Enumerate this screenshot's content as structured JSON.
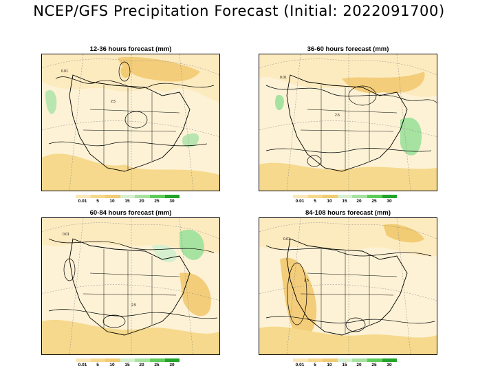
{
  "title": "NCEP/GFS Precipitation Forecast (Initial: 2022091700)",
  "panels": [
    {
      "title": "12-36 hours forecast (mm)"
    },
    {
      "title": "36-60 hours forecast (mm)"
    },
    {
      "title": "60-84 hours forecast (mm)"
    },
    {
      "title": "84-108 hours forecast (mm)"
    }
  ],
  "colorbar": {
    "labels": [
      "0.01",
      "5",
      "10",
      "15",
      "20",
      "25",
      "30"
    ],
    "colors": [
      "#fbe8b8",
      "#f6d98c",
      "#f2cc74",
      "#d6f0cf",
      "#a6e2a0",
      "#5fcb5a",
      "#22a32a"
    ]
  },
  "contour_labels": [
    "0.01",
    "2.5"
  ],
  "colors": {
    "precip_light": "#fdebc0",
    "precip_moderate": "#f3cd7a",
    "precip_heavy_green": "#a6e2a0",
    "precip_very_heavy": "#3fb847",
    "map_lines": "#000000",
    "grid_lines": "#888888"
  }
}
